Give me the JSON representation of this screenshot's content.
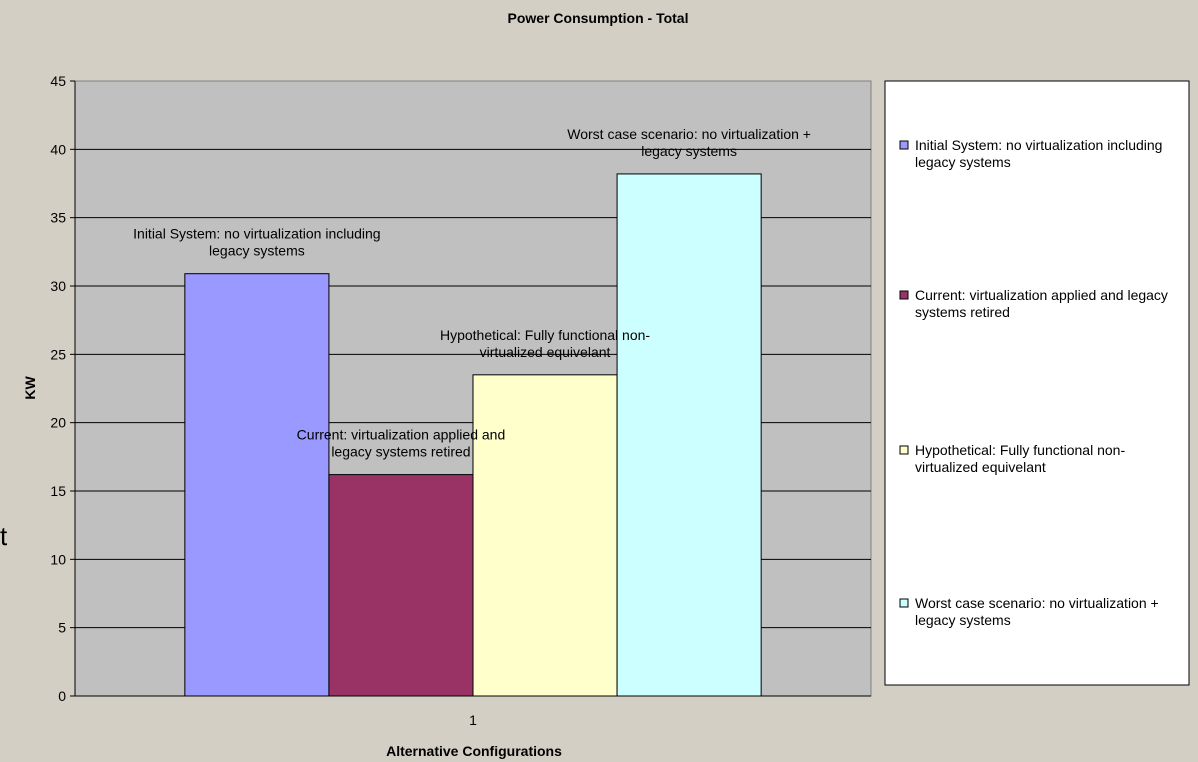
{
  "chart_data": {
    "type": "bar",
    "title": "Power Consumption - Total",
    "xlabel": "Alternative Configurations",
    "ylabel": "KW",
    "categories": [
      "1"
    ],
    "series": [
      {
        "name": "Initial System: no virtualization including legacy systems",
        "color": "#9999ff",
        "values": [
          30.9
        ]
      },
      {
        "name": "Current: virtualization applied and legacy systems retired",
        "color": "#993366",
        "values": [
          16.2
        ]
      },
      {
        "name": "Hypothetical: Fully functional non-virtualized equivelant",
        "color": "#ffffcc",
        "values": [
          23.5
        ]
      },
      {
        "name": "Worst case scenario: no virtualization + legacy systems",
        "color": "#ccffff",
        "values": [
          38.2
        ]
      }
    ],
    "ylim": [
      0,
      45
    ],
    "yticks": [
      0,
      5,
      10,
      15,
      20,
      25,
      30,
      35,
      40,
      45
    ],
    "grid": true,
    "legend": "right",
    "annotations": [
      "t"
    ]
  }
}
